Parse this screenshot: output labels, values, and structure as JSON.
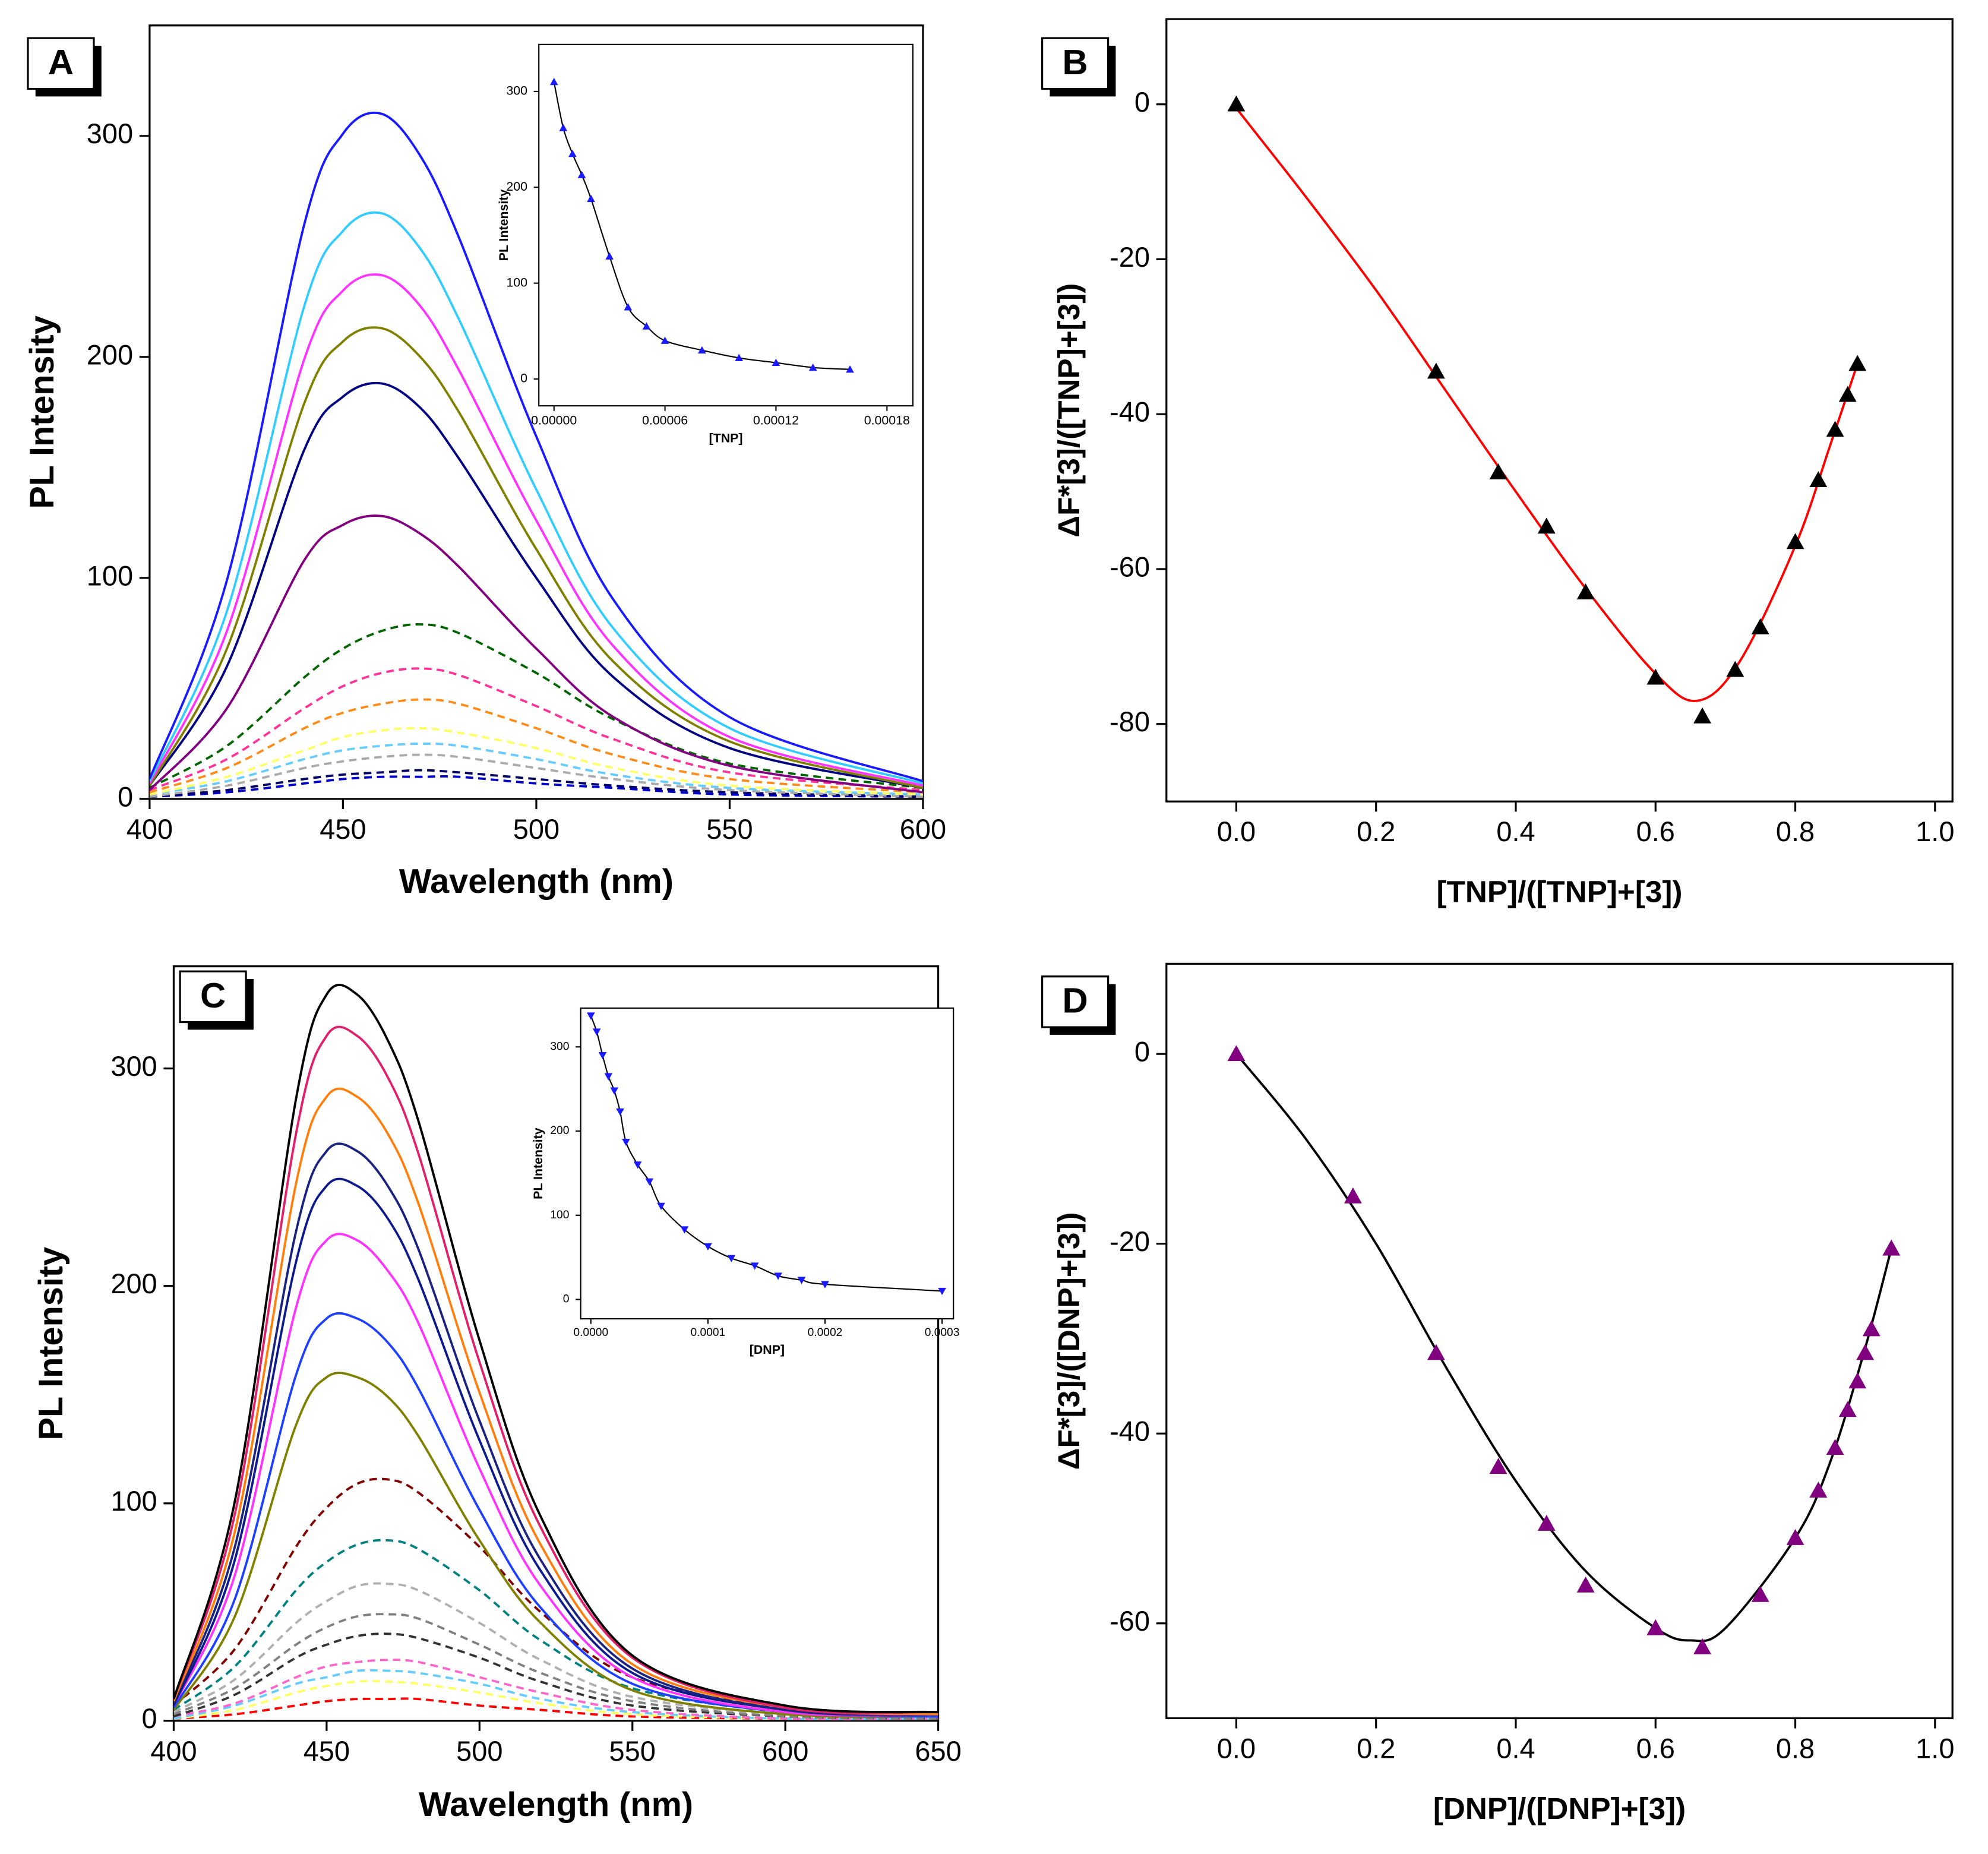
{
  "chart_data": [
    {
      "type": "line",
      "label": "A",
      "xlabel": "Wavelength (nm)",
      "ylabel": "PL Intensity",
      "xlim": [
        400,
        600
      ],
      "xticks": [
        400,
        450,
        500,
        550,
        600
      ],
      "ylim": [
        0,
        350
      ],
      "yticks": [
        0,
        100,
        200,
        300
      ],
      "x": [
        400,
        420,
        440,
        450,
        460,
        470,
        480,
        500,
        520,
        550,
        600
      ],
      "series": [
        {
          "color": "#1a1aff",
          "dashed": false,
          "values": [
            9,
            99,
            260,
            301,
            310,
            291,
            254,
            164,
            90,
            37,
            8
          ]
        },
        {
          "color": "#33ccff",
          "dashed": false,
          "values": [
            8,
            85,
            223,
            257,
            265,
            249,
            217,
            140,
            77,
            32,
            7
          ]
        },
        {
          "color": "#ff33ff",
          "dashed": false,
          "values": [
            7,
            76,
            199,
            230,
            237,
            223,
            194,
            126,
            69,
            28,
            6
          ]
        },
        {
          "color": "#808000",
          "dashed": false,
          "values": [
            6,
            68,
            179,
            207,
            213,
            200,
            175,
            113,
            62,
            26,
            5
          ]
        },
        {
          "color": "#000080",
          "dashed": false,
          "values": [
            6,
            60,
            158,
            182,
            188,
            177,
            154,
            100,
            55,
            23,
            5
          ]
        },
        {
          "color": "#800080",
          "dashed": false,
          "values": [
            4,
            41,
            108,
            124,
            128,
            120,
            105,
            68,
            37,
            15,
            3
          ]
        },
        {
          "color": "#006400",
          "dashed": true,
          "values": [
            5,
            24,
            55,
            68,
            76,
            79,
            75,
            57,
            36,
            16,
            5
          ]
        },
        {
          "color": "#ff3399",
          "dashed": true,
          "values": [
            4,
            18,
            41,
            51,
            57,
            59,
            56,
            42,
            27,
            12,
            4
          ]
        },
        {
          "color": "#ff8c1a",
          "dashed": true,
          "values": [
            3,
            14,
            32,
            39,
            43,
            45,
            43,
            32,
            20,
            9,
            3
          ]
        },
        {
          "color": "#ffff66",
          "dashed": true,
          "values": [
            2,
            10,
            22,
            28,
            31,
            32,
            30,
            23,
            14,
            6,
            2
          ]
        },
        {
          "color": "#66ccff",
          "dashed": true,
          "values": [
            2,
            8,
            18,
            22,
            24,
            25,
            24,
            18,
            11,
            5,
            2
          ]
        },
        {
          "color": "#aaaaaa",
          "dashed": true,
          "values": [
            1,
            6,
            14,
            17,
            19,
            20,
            19,
            14,
            9,
            4,
            1
          ]
        },
        {
          "color": "#000066",
          "dashed": true,
          "values": [
            1,
            4,
            9,
            11,
            12,
            13,
            12,
            9,
            6,
            3,
            1
          ]
        },
        {
          "color": "#0000cc",
          "dashed": true,
          "values": [
            1,
            3,
            7,
            9,
            10,
            10,
            10,
            7,
            5,
            2,
            1
          ]
        }
      ]
    },
    {
      "type": "scatter",
      "xlabel": "[TNP]",
      "ylabel": "PL Intensity",
      "xlim": [
        -8.2e-06,
        0.000194
      ],
      "xticks": [
        {
          "value": 0,
          "label": "0.00000"
        },
        {
          "value": 6e-05,
          "label": "0.00006"
        },
        {
          "value": 0.00012,
          "label": "0.00012"
        },
        {
          "value": 0.00018,
          "label": "0.00018"
        }
      ],
      "ylim": [
        -28,
        349
      ],
      "yticks": [
        0,
        100,
        200,
        300
      ],
      "series": [
        {
          "color": "#1a1aff",
          "marker": "triangle-up",
          "line_color": "#000000",
          "x": [
            0,
            5e-06,
            1e-05,
            1.5e-05,
            2e-05,
            3e-05,
            4e-05,
            5e-05,
            6e-05,
            8e-05,
            0.0001,
            0.00012,
            0.00014,
            0.00016
          ],
          "values": [
            310,
            262,
            235,
            213,
            188,
            128,
            75,
            55,
            40,
            30,
            22,
            17,
            12,
            10
          ]
        }
      ]
    },
    {
      "type": "scatter",
      "label": "B",
      "xlabel": "[TNP]/([TNP]+[3])",
      "ylabel": "ΔF*[3]/([TNP]+[3])",
      "xlim": [
        -0.1,
        1.025
      ],
      "xticks": [
        {
          "value": 0,
          "label": "0.0"
        },
        0.2,
        0.4,
        0.6,
        0.8,
        {
          "value": 1,
          "label": "1.0"
        }
      ],
      "ylim": [
        -90,
        11
      ],
      "yticks": [
        -80,
        -60,
        -40,
        -20,
        0
      ],
      "series": [
        {
          "line_color": "#ff0000",
          "x": [
            0,
            0.1,
            0.2,
            0.3,
            0.4,
            0.5,
            0.6,
            0.66,
            0.72,
            0.8,
            0.85,
            0.889
          ],
          "values": [
            -0.5,
            -12,
            -24,
            -37,
            -50,
            -62.5,
            -73.5,
            -77,
            -72,
            -57,
            -44,
            -33.5
          ]
        },
        {
          "color": "#000000",
          "marker": "triangle-up",
          "x": [
            0,
            0.286,
            0.375,
            0.444,
            0.5,
            0.6,
            0.667,
            0.714,
            0.75,
            0.8,
            0.833,
            0.857,
            0.875,
            0.889
          ],
          "values": [
            0,
            -34.5,
            -47.5,
            -54.5,
            -63,
            -74,
            -79,
            -73,
            -67.5,
            -56.5,
            -48.5,
            -42,
            -37.5,
            -33.5
          ]
        }
      ]
    },
    {
      "type": "line",
      "label": "C",
      "xlabel": "Wavelength (nm)",
      "ylabel": "PL Intensity",
      "xlim": [
        400,
        650
      ],
      "xticks": [
        400,
        450,
        500,
        550,
        600,
        650
      ],
      "ylim": [
        0,
        347
      ],
      "yticks": [
        0,
        100,
        200,
        300
      ],
      "x": [
        400,
        420,
        440,
        450,
        460,
        470,
        480,
        500,
        520,
        550,
        600,
        650
      ],
      "series": [
        {
          "color": "#000000",
          "dashed": false,
          "values": [
            10,
            101,
            286,
            334,
            334,
            313,
            276,
            175,
            94,
            30,
            7,
            4
          ]
        },
        {
          "color": "#e0206a",
          "dashed": false,
          "values": [
            10,
            95,
            270,
            315,
            315,
            296,
            261,
            165,
            89,
            29,
            6,
            4
          ]
        },
        {
          "color": "#ff7f0e",
          "dashed": false,
          "values": [
            9,
            87,
            247,
            287,
            287,
            270,
            238,
            151,
            81,
            26,
            6,
            3
          ]
        },
        {
          "color": "#1a237e",
          "dashed": false,
          "values": [
            8,
            80,
            225,
            262,
            262,
            246,
            217,
            138,
            74,
            24,
            5,
            3
          ]
        },
        {
          "color": "#0d1a8c",
          "dashed": false,
          "values": [
            7,
            74,
            211,
            246,
            246,
            231,
            203,
            129,
            69,
            22,
            5,
            3
          ]
        },
        {
          "color": "#ff33ff",
          "dashed": false,
          "values": [
            7,
            67,
            190,
            221,
            221,
            207,
            183,
            116,
            62,
            20,
            4,
            3
          ]
        },
        {
          "color": "#1f3fff",
          "dashed": false,
          "values": [
            6,
            56,
            159,
            185,
            185,
            174,
            153,
            97,
            52,
            17,
            4,
            2
          ]
        },
        {
          "color": "#808000",
          "dashed": false,
          "values": [
            5,
            48,
            136,
            158,
            158,
            149,
            131,
            83,
            45,
            14,
            3,
            2
          ]
        },
        {
          "color": "#800000",
          "dashed": true,
          "values": [
            7,
            33,
            80,
            98,
            109,
            111,
            105,
            80,
            50,
            20,
            6,
            3
          ]
        },
        {
          "color": "#008080",
          "dashed": true,
          "values": [
            5,
            25,
            60,
            73,
            81,
            83,
            79,
            60,
            37,
            15,
            4,
            2
          ]
        },
        {
          "color": "#b0b0b0",
          "dashed": true,
          "values": [
            4,
            19,
            45,
            55,
            62,
            63,
            60,
            45,
            28,
            11,
            3,
            2
          ]
        },
        {
          "color": "#808080",
          "dashed": true,
          "values": [
            3,
            15,
            35,
            43,
            48,
            49,
            47,
            35,
            22,
            9,
            2,
            1
          ]
        },
        {
          "color": "#333333",
          "dashed": true,
          "values": [
            2,
            12,
            29,
            35,
            39,
            40,
            38,
            29,
            18,
            7,
            2,
            1
          ]
        },
        {
          "color": "#ff66cc",
          "dashed": true,
          "values": [
            2,
            8,
            20,
            25,
            27,
            28,
            27,
            20,
            13,
            5,
            1,
            1
          ]
        },
        {
          "color": "#66ccff",
          "dashed": true,
          "values": [
            1,
            7,
            17,
            20,
            23,
            23,
            22,
            17,
            10,
            4,
            1,
            1
          ]
        },
        {
          "color": "#ffff66",
          "dashed": true,
          "values": [
            1,
            5,
            13,
            16,
            18,
            18,
            17,
            13,
            8,
            3,
            1,
            1
          ]
        },
        {
          "color": "#ff0000",
          "dashed": true,
          "values": [
            1,
            3,
            7,
            9,
            10,
            10,
            10,
            7,
            5,
            2,
            1,
            1
          ]
        }
      ]
    },
    {
      "type": "scatter",
      "xlabel": "[DNP]",
      "ylabel": "PL Intensity",
      "xlim": [
        -8.7e-06,
        0.0003097
      ],
      "xticks": [
        {
          "value": 0,
          "label": "0.0000"
        },
        {
          "value": 0.0001,
          "label": "0.0001"
        },
        {
          "value": 0.0002,
          "label": "0.0002"
        },
        {
          "value": 0.0003,
          "label": "0.0003"
        }
      ],
      "ylim": [
        -23,
        346
      ],
      "yticks": [
        0,
        100,
        200,
        300
      ],
      "series": [
        {
          "color": "#1a1aff",
          "marker": "triangle-down",
          "line_color": "#000000",
          "x": [
            0,
            5e-06,
            1e-05,
            1.5e-05,
            2e-05,
            2.5e-05,
            3e-05,
            4e-05,
            5e-05,
            6e-05,
            8e-05,
            0.0001,
            0.00012,
            0.00014,
            0.00016,
            0.00018,
            0.0002,
            0.0003
          ],
          "values": [
            337,
            318,
            290,
            265,
            248,
            223,
            187,
            160,
            140,
            111,
            83,
            63,
            49,
            40,
            28,
            23,
            18,
            10
          ]
        }
      ]
    },
    {
      "type": "scatter",
      "label": "D",
      "xlabel": "[DNP]/([DNP]+[3])",
      "ylabel": "ΔF*[3]/([DNP]+[3])",
      "xlim": [
        -0.1,
        1.025
      ],
      "xticks": [
        {
          "value": 0,
          "label": "0.0"
        },
        0.2,
        0.4,
        0.6,
        0.8,
        {
          "value": 1,
          "label": "1.0"
        }
      ],
      "ylim": [
        -70,
        9.5
      ],
      "yticks": [
        -60,
        -40,
        -20,
        0
      ],
      "series": [
        {
          "line_color": "#000000",
          "x": [
            0,
            0.1,
            0.2,
            0.3,
            0.4,
            0.5,
            0.6,
            0.65,
            0.7,
            0.8,
            0.85,
            0.9,
            0.9375
          ],
          "values": [
            0,
            -9,
            -20,
            -33,
            -45,
            -54.5,
            -60.5,
            -61.8,
            -60.5,
            -51,
            -43,
            -31,
            -20.5
          ]
        },
        {
          "color": "#800080",
          "marker": "triangle-up",
          "x": [
            0,
            0.167,
            0.286,
            0.375,
            0.444,
            0.5,
            0.6,
            0.667,
            0.75,
            0.8,
            0.833,
            0.857,
            0.875,
            0.889,
            0.9,
            0.909,
            0.9375
          ],
          "values": [
            0,
            -15,
            -31.5,
            -43.5,
            -49.5,
            -56,
            -60.5,
            -62.5,
            -57,
            -51,
            -46,
            -41.5,
            -37.5,
            -34.5,
            -31.5,
            -29,
            -20.5
          ]
        }
      ]
    }
  ]
}
